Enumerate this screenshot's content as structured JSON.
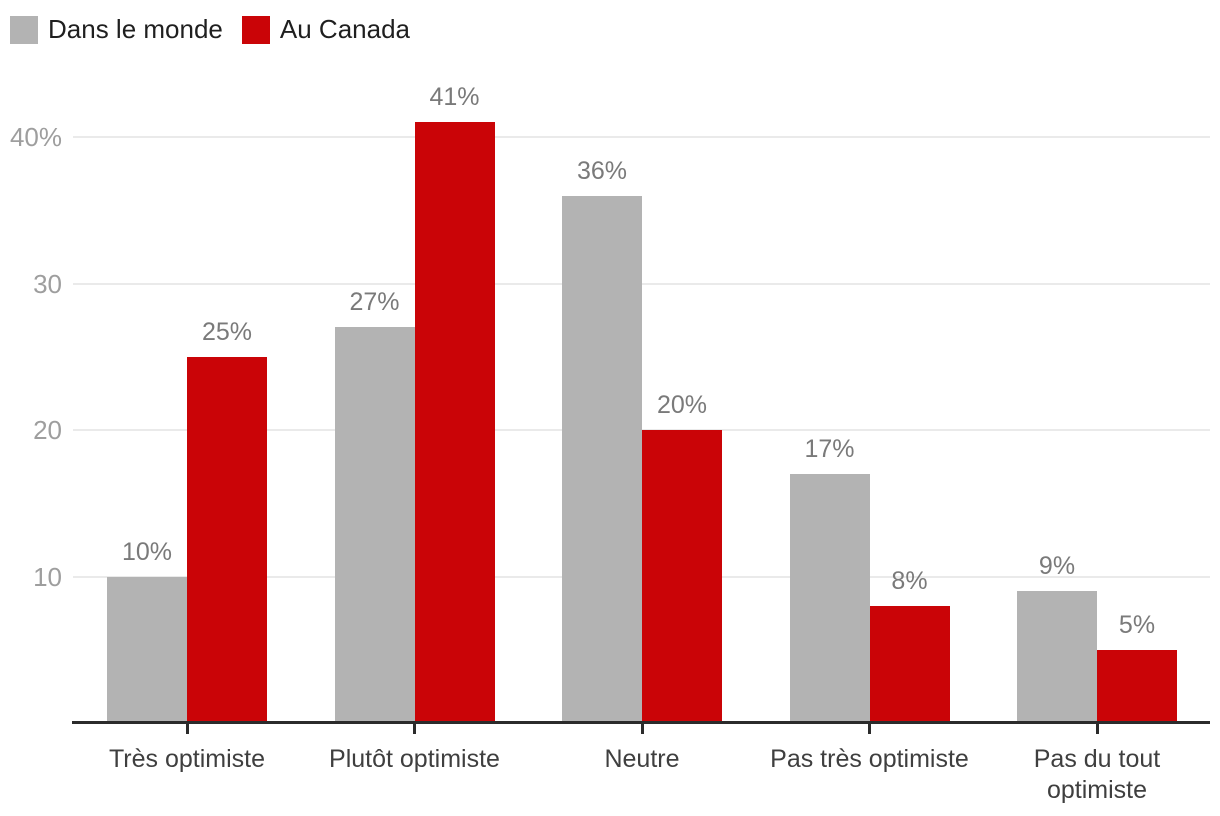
{
  "chart_data": {
    "type": "bar",
    "title": "",
    "categories": [
      "Très optimiste",
      "Plutôt optimiste",
      "Neutre",
      "Pas très optimiste",
      "Pas du tout optimiste"
    ],
    "series": [
      {
        "name": "Dans le monde",
        "color": "#b3b3b3",
        "values": [
          10,
          27,
          36,
          17,
          9
        ],
        "labels": [
          "10%",
          "27%",
          "36%",
          "17%",
          "9%"
        ]
      },
      {
        "name": "Au Canada",
        "color": "#ca0407",
        "values": [
          25,
          41,
          20,
          8,
          5
        ],
        "labels": [
          "25%",
          "41%",
          "20%",
          "8%",
          "5%"
        ]
      }
    ],
    "value_suffix": "%",
    "y_axis": {
      "ticks": [
        {
          "value": 10,
          "label": "10"
        },
        {
          "value": 20,
          "label": "20"
        },
        {
          "value": 30,
          "label": "30"
        },
        {
          "value": 40,
          "label": "40%"
        }
      ],
      "min": 0,
      "max": 43
    },
    "x_axis": {
      "label": ""
    },
    "legend_position": "top-left",
    "grid": "horizontal",
    "colors": {
      "background": "#ffffff",
      "gridline": "#eaeaea",
      "axis": "#2b2b2b"
    }
  }
}
